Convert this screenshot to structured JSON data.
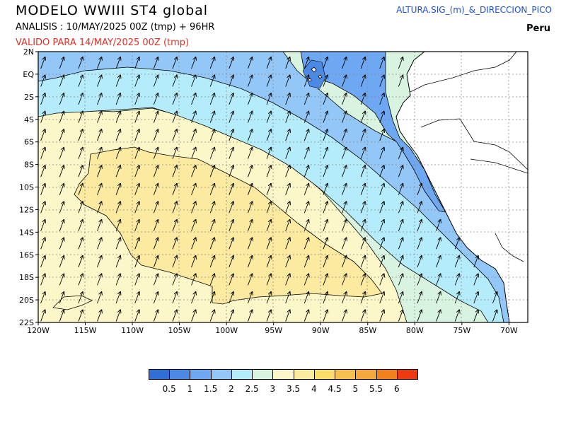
{
  "header": {
    "title": "MODELO WWIII ST4 global",
    "analysis": "ANALISIS : 10/MAY/2025 00Z  (tmp) + 96HR",
    "valid": "VALIDO PARA  14/MAY/2025 00Z  (tmp)",
    "variable": "ALTURA.SIG_(m)_&_DIRECCION_PICO",
    "region": "Peru"
  },
  "map": {
    "lon_range": [
      -120,
      -68
    ],
    "lat_range": [
      -22,
      2
    ],
    "x_ticks": [
      "120W",
      "115W",
      "110W",
      "105W",
      "100W",
      "95W",
      "90W",
      "85W",
      "80W",
      "75W",
      "70W"
    ],
    "y_ticks": [
      "2N",
      "EQ",
      "2S",
      "4S",
      "6S",
      "8S",
      "10S",
      "12S",
      "14S",
      "16S",
      "18S",
      "20S",
      "22S"
    ],
    "wave_direction": "toward north-northeast",
    "land_color": "#ffffff",
    "grid": true
  },
  "colorbar": {
    "colors": [
      "#2f6fd8",
      "#4a8ae6",
      "#6fa8f2",
      "#93c7f8",
      "#b5ecfb",
      "#d8f4e1",
      "#fcf7c8",
      "#fbeaa0",
      "#fbdd6a",
      "#f6c04e",
      "#f4a83c",
      "#f2801a",
      "#ee3a10"
    ],
    "labels": [
      "0.5",
      "1",
      "1.5",
      "2",
      "2.5",
      "3",
      "3.5",
      "4",
      "4.5",
      "5",
      "5.5",
      "6"
    ]
  }
}
